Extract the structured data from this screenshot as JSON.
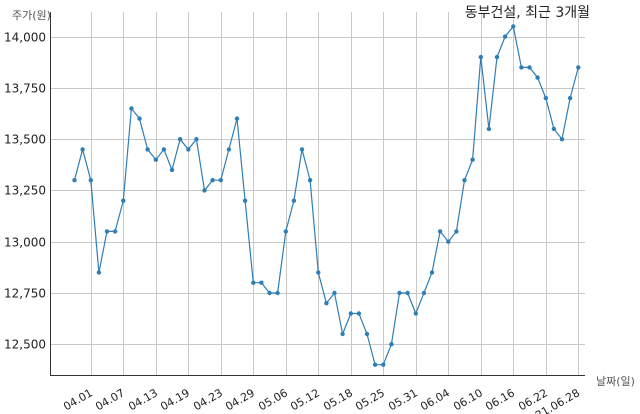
{
  "chart_data": {
    "type": "line",
    "title": "동부건설, 최근 3개월",
    "xlabel": "날짜(일)",
    "ylabel": "주가(원)",
    "ylim": [
      12350,
      14120
    ],
    "grid": true,
    "series_color": "#2f7eb6",
    "y_ticks": [
      12500,
      12750,
      13000,
      13250,
      13500,
      13750,
      14000
    ],
    "y_tick_labels": [
      "12,500",
      "12,750",
      "13,000",
      "13,250",
      "13,500",
      "13,750",
      "14,000"
    ],
    "x_tick_labels": [
      "04.01",
      "04.07",
      "04.13",
      "04.19",
      "04.23",
      "04.29",
      "05.06",
      "05.12",
      "05.18",
      "05.25",
      "05.31",
      "06.04",
      "06.10",
      "06.16",
      "06.22",
      "21.06.28"
    ],
    "x_tick_index": [
      2,
      6,
      10,
      14,
      18,
      22,
      26,
      30,
      34,
      38,
      42,
      46,
      50,
      54,
      58,
      62
    ],
    "values": [
      13300,
      13450,
      13300,
      12850,
      13050,
      13050,
      13200,
      13650,
      13600,
      13450,
      13400,
      13450,
      13350,
      13500,
      13450,
      13500,
      13250,
      13300,
      13300,
      13450,
      13600,
      13200,
      12800,
      12800,
      12750,
      12750,
      13050,
      13200,
      13450,
      13300,
      12850,
      12700,
      12750,
      12550,
      12650,
      12650,
      12550,
      12400,
      12400,
      12500,
      12750,
      12750,
      12650,
      12750,
      12850,
      13050,
      13000,
      13050,
      13300,
      13400,
      13900,
      13550,
      13900,
      14000,
      14050,
      13850,
      13850,
      13800,
      13700,
      13550,
      13500,
      13700,
      13850
    ]
  }
}
